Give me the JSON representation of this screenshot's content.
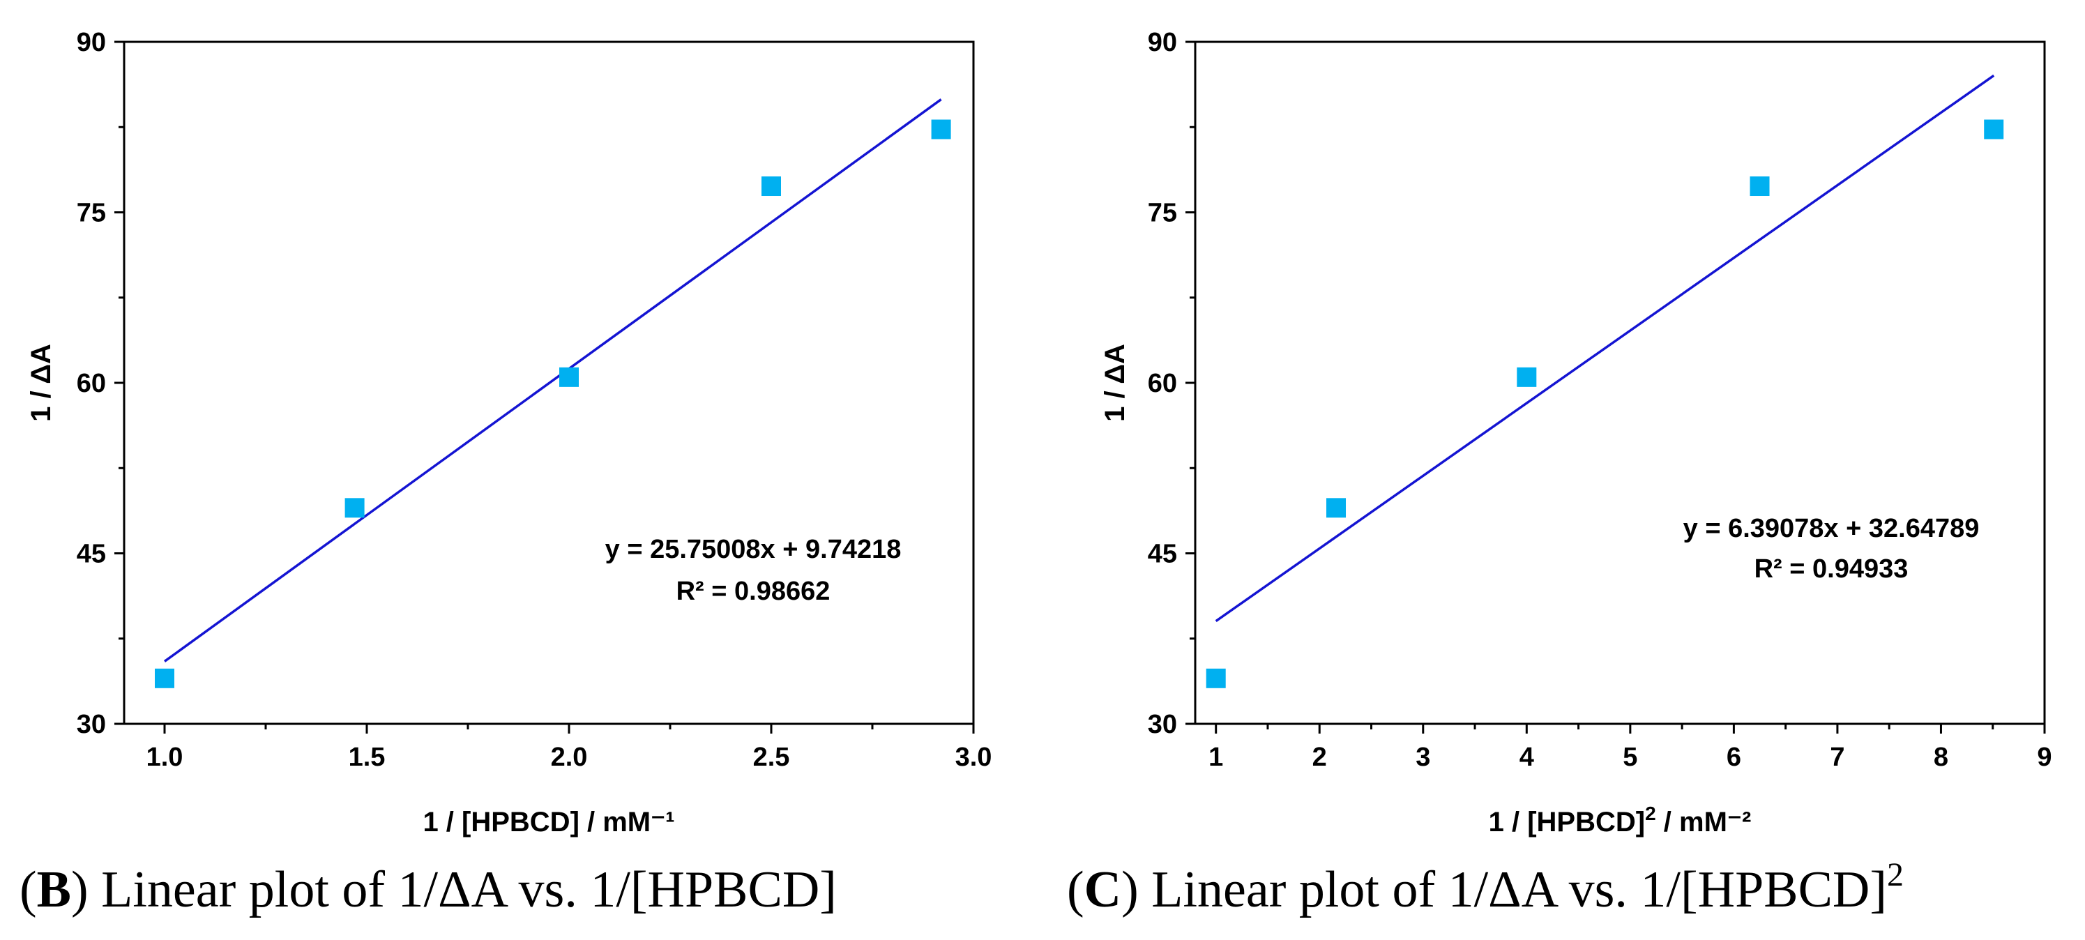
{
  "chart_data": [
    {
      "type": "scatter",
      "panel": "B",
      "x": [
        1.0,
        1.47,
        2.0,
        2.5,
        2.92
      ],
      "y": [
        34.0,
        49.0,
        60.5,
        77.3,
        82.3
      ],
      "xlim": [
        0.9,
        3.0
      ],
      "ylim": [
        30,
        90
      ],
      "xticks": [
        1.0,
        1.5,
        2.0,
        2.5,
        3.0
      ],
      "xtick_labels": [
        "1.0",
        "1.5",
        "2.0",
        "2.5",
        "3.0"
      ],
      "yticks": [
        30,
        45,
        60,
        75,
        90
      ],
      "ytick_labels": [
        "30",
        "45",
        "60",
        "75",
        "90"
      ],
      "xlabel": "1 / [HPBCD] / mM⁻¹",
      "ylabel": "1 / ΔA",
      "fit": {
        "slope": 25.75008,
        "intercept": 9.74218,
        "x_range": [
          1.0,
          2.92
        ]
      },
      "equation": "y = 25.75008x + 9.74218",
      "r2": "R² = 0.98662",
      "caption_letter": "B",
      "caption_text": " Linear plot of 1/ΔA vs. 1/[HPBCD]",
      "marker_color": "#00B0F0",
      "line_color": "#1414D2"
    },
    {
      "type": "scatter",
      "panel": "C",
      "x": [
        1.0,
        2.16,
        4.0,
        6.25,
        8.51
      ],
      "y": [
        34.0,
        49.0,
        60.5,
        77.3,
        82.3
      ],
      "xlim": [
        0.8,
        9.0
      ],
      "ylim": [
        30,
        90
      ],
      "xticks": [
        1,
        2,
        3,
        4,
        5,
        6,
        7,
        8,
        9
      ],
      "xtick_labels": [
        "1",
        "2",
        "3",
        "4",
        "5",
        "6",
        "7",
        "8",
        "9"
      ],
      "yticks": [
        30,
        45,
        60,
        75,
        90
      ],
      "ytick_labels": [
        "30",
        "45",
        "60",
        "75",
        "90"
      ],
      "xlabel_main": "1 / [HPBCD]",
      "xlabel_sup": "2",
      "xlabel_tail": " / mM⁻²",
      "ylabel": "1 / ΔA",
      "fit": {
        "slope": 6.39078,
        "intercept": 32.64789,
        "x_range": [
          1.0,
          8.51
        ]
      },
      "equation": "y = 6.39078x + 32.64789",
      "r2": "R² = 0.94933",
      "caption_letter": "C",
      "caption_text": " Linear plot of 1/ΔA vs. 1/[HPBCD]",
      "caption_sup": "2",
      "marker_color": "#00B0F0",
      "line_color": "#1414D2"
    }
  ]
}
